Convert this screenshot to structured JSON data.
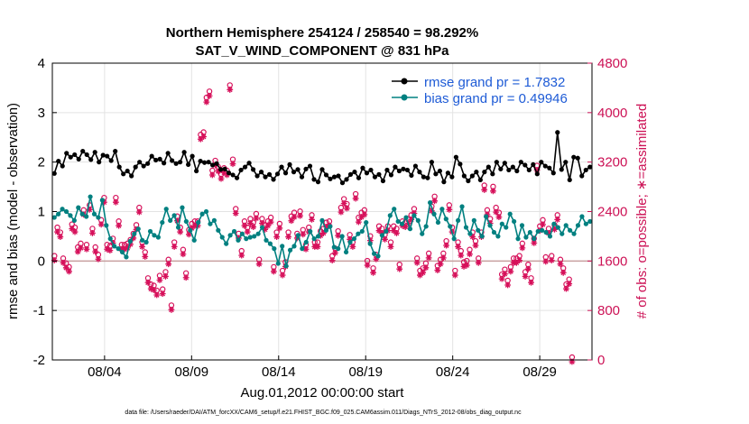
{
  "chart_data": {
    "type": "line",
    "title_line1": "Northern Hemisphere 254124 / 258540 = 98.292%",
    "title_line2": "SAT_V_WIND_COMPONENT @ 831 hPa",
    "xlabel": "Aug.01,2012 00:00:00 start",
    "ylabel_left": "rmse and bias (model - observation)",
    "ylabel_right": "# of obs: o=possible; ∗=assimilated",
    "footer": "data file: /Users/raeder/DAI/ATM_forcXX/CAM6_setup/f.e21.FHIST_BGC.f09_025.CAM6assim.011/Diags_NTrS_2012-08/obs_diag_output.nc",
    "xlim_days": [
      1.0,
      32.0
    ],
    "ylim_left": [
      -2,
      4
    ],
    "ylim_right": [
      0,
      4800
    ],
    "x_ticks": [
      {
        "day": 4,
        "label": "08/04"
      },
      {
        "day": 9,
        "label": "08/09"
      },
      {
        "day": 14,
        "label": "08/14"
      },
      {
        "day": 19,
        "label": "08/19"
      },
      {
        "day": 24,
        "label": "08/24"
      },
      {
        "day": 29,
        "label": "08/29"
      }
    ],
    "y_left_ticks": [
      "4",
      "3",
      "2",
      "1",
      "0",
      "-1",
      "-2"
    ],
    "y_right_ticks": [
      "4800",
      "4000",
      "3200",
      "2400",
      "1600",
      "800",
      "0"
    ],
    "grid": true,
    "legend_position": "top-right",
    "colors": {
      "rmse": "#000000",
      "bias": "#008080",
      "obs": "#d6105a",
      "zero_line": "#c8a0a0",
      "grid": "#e3e3e3"
    },
    "series": [
      {
        "name": "rmse grand pr = 1.7832",
        "axis": "left",
        "values": [
          1.77,
          2.02,
          1.92,
          2.18,
          2.1,
          2.15,
          2.06,
          2.22,
          2.15,
          2.05,
          2.2,
          2.0,
          2.14,
          2.12,
          2.03,
          2.22,
          1.9,
          1.76,
          1.82,
          1.72,
          1.9,
          2.0,
          1.92,
          1.97,
          2.12,
          2.04,
          2.06,
          1.98,
          2.18,
          2.03,
          1.97,
          2.0,
          2.2,
          1.95,
          2.12,
          1.82,
          2.02,
          1.99,
          2.0,
          1.94,
          1.97,
          1.85,
          1.86,
          1.78,
          1.74,
          1.68,
          1.84,
          1.9,
          1.98,
          1.85,
          1.72,
          1.8,
          1.7,
          1.75,
          1.65,
          1.76,
          1.9,
          1.78,
          1.95,
          1.8,
          1.85,
          1.7,
          1.86,
          1.92,
          1.65,
          1.6,
          1.85,
          1.74,
          1.66,
          1.7,
          1.72,
          1.58,
          1.65,
          1.75,
          1.8,
          1.68,
          1.88,
          1.78,
          1.84,
          1.7,
          1.75,
          1.62,
          1.84,
          1.74,
          1.9,
          1.82,
          1.86,
          1.84,
          1.73,
          1.92,
          1.8,
          1.7,
          1.68,
          2.0,
          1.76,
          1.82,
          1.6,
          1.78,
          1.7,
          2.1,
          1.96,
          1.72,
          1.62,
          1.72,
          1.8,
          1.64,
          1.8,
          1.9,
          1.76,
          2.0,
          1.86,
          1.98,
          1.84,
          1.9,
          1.82,
          2.0,
          1.94,
          1.84,
          1.95,
          1.76,
          2.0,
          1.92,
          1.88,
          1.78,
          2.6,
          1.85,
          2.0,
          1.64,
          2.1,
          2.08,
          1.72,
          1.84,
          1.9
        ]
      },
      {
        "name": "bias grand pr = 0.49946",
        "axis": "left",
        "values": [
          0.88,
          0.95,
          1.05,
          1.0,
          0.92,
          0.82,
          1.08,
          0.95,
          0.9,
          1.3,
          0.95,
          0.88,
          1.23,
          0.72,
          0.45,
          0.3,
          0.25,
          0.18,
          0.08,
          0.4,
          0.55,
          0.65,
          0.42,
          0.38,
          0.6,
          0.52,
          0.48,
          0.78,
          1.05,
          0.82,
          0.92,
          0.68,
          1.08,
          0.8,
          0.62,
          0.42,
          0.78,
          0.95,
          1.0,
          0.75,
          0.82,
          0.62,
          0.48,
          0.35,
          0.52,
          0.6,
          0.42,
          0.55,
          0.45,
          0.48,
          0.5,
          0.55,
          0.68,
          0.42,
          0.35,
          0.25,
          -0.05,
          0.3,
          -0.1,
          0.22,
          0.3,
          0.52,
          0.25,
          0.38,
          0.6,
          0.45,
          0.5,
          0.82,
          0.62,
          0.7,
          0.28,
          0.25,
          0.5,
          0.18,
          0.38,
          0.45,
          0.55,
          0.6,
          0.78,
          0.35,
          0.15,
          0.1,
          0.52,
          0.6,
          0.92,
          1.05,
          0.8,
          0.75,
          0.88,
          0.65,
          0.92,
          0.82,
          0.55,
          0.7,
          1.18,
          0.95,
          0.78,
          1.05,
          0.85,
          0.7,
          0.45,
          0.82,
          1.1,
          0.68,
          0.55,
          0.82,
          0.62,
          0.5,
          0.9,
          0.72,
          0.58,
          0.5,
          0.75,
          0.68,
          0.95,
          0.8,
          0.45,
          0.72,
          0.48,
          0.58,
          0.45,
          0.6,
          0.62,
          0.58,
          0.5,
          0.75,
          0.68,
          0.55,
          0.72,
          0.62,
          0.55,
          0.72,
          0.9,
          0.75,
          0.8
        ]
      },
      {
        "name": "possible observations",
        "axis": "right",
        "values": [
          1640,
          2100,
          2020,
          1600,
          1520,
          1460,
          2150,
          2100,
          1780,
          1840,
          2380,
          1820,
          2460,
          2080,
          1780,
          1660,
          2220,
          2580,
          1820,
          1800,
          1920,
          2580,
          2200,
          1820,
          1820,
          1840,
          1900,
          2000,
          2140,
          2420,
          1860,
          1700,
          1280,
          1180,
          1160,
          1080,
          1320,
          1100,
          1380,
          1580,
          840,
          1860,
          2280,
          2100,
          1740,
          1360,
          2060,
          2160,
          2200,
          2200,
          3600,
          3640,
          4200,
          4300,
          3020,
          3180,
          3080,
          2960,
          3060,
          3020,
          4400,
          3200,
          2400,
          2000,
          1720,
          2200,
          2100,
          2240,
          2180,
          2320,
          1580,
          2240,
          2140,
          2200,
          2260,
          1460,
          2020,
          2160,
          1400,
          1540,
          2020,
          2280,
          2340,
          2000,
          2360,
          2060,
          1820,
          2100,
          2300,
          1860,
          1860,
          2040,
          2080,
          2180,
          2200,
          1640,
          1760,
          2040,
          2420,
          2560,
          2480,
          1980,
          1860,
          2640,
          2260,
          2340,
          2380,
          1560,
          1960,
          1440,
          1660,
          2120,
          2080,
          1980,
          2120,
          1860,
          2120,
          2080,
          1500,
          2200,
          2180,
          2240,
          2300,
          2400,
          1600,
          1400,
          1440,
          1520,
          1680,
          2440,
          2600,
          1480,
          1580,
          1680,
          1880,
          2460,
          2100,
          1400,
          1860,
          1720,
          1540,
          1560,
          1740,
          2020,
          1880,
          1600,
          2020,
          2780,
          2380,
          2240,
          2760,
          2420,
          2340,
          1340,
          1420,
          1240,
          1460,
          1600,
          1600,
          1640,
          1840,
          1380,
          1500,
          1280,
          1920,
          3100,
          2120,
          2220,
          1620,
          2080,
          1640,
          2140,
          2300,
          1580,
          1440,
          1180,
          1260,
          0
        ],
        "x_spacing_days": 0.168
      }
    ]
  }
}
